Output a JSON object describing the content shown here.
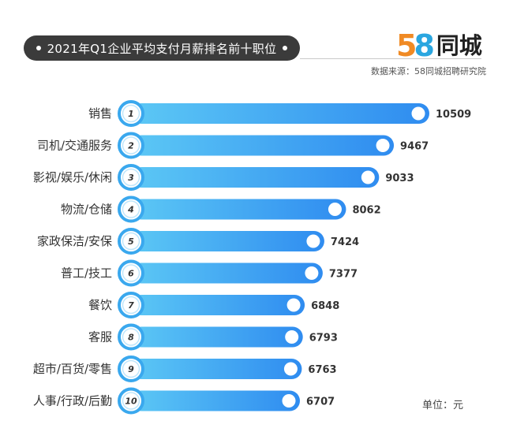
{
  "title": "2021年Q1企业平均支付月薪排名前十职位",
  "logo": {
    "digits_a": "5",
    "digits_b": "8",
    "text": "同城"
  },
  "source": "数据来源：58同城招聘研究院",
  "unit": "单位：元",
  "colors": {
    "bar_start": "#4fc3f7",
    "bar_end": "#2f8cf0",
    "title_bg": "#3b3b3b",
    "rank_ring": "#3aa8ee"
  },
  "chart_data": {
    "type": "bar",
    "orientation": "horizontal",
    "categories": [
      "销售",
      "司机/交通服务",
      "影视/娱乐/休闲",
      "物流/仓储",
      "家政保洁/安保",
      "普工/技工",
      "餐饮",
      "客服",
      "超市/百货/零售",
      "人事/行政/后勤"
    ],
    "ranks": [
      "1",
      "2",
      "3",
      "4",
      "5",
      "6",
      "7",
      "8",
      "9",
      "10"
    ],
    "values": [
      10509,
      9467,
      9033,
      8062,
      7424,
      7377,
      6848,
      6793,
      6763,
      6707
    ],
    "value_labels": [
      "10509",
      "9467",
      "9033",
      "8062",
      "7424",
      "7377",
      "6848",
      "6793",
      "6763",
      "6707"
    ]
  }
}
